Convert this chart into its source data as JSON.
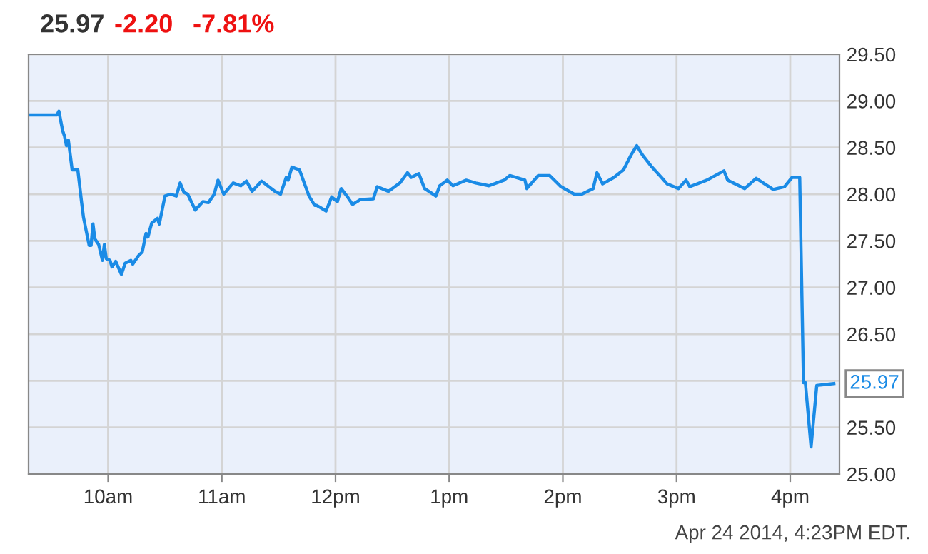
{
  "chart_data": {
    "type": "line",
    "title": "25.97",
    "annotations": [
      "-2.20",
      "-7.81%",
      {
        "text": "25.97",
        "x": "2014-04-24T16:23",
        "y": 25.97
      },
      "Apr 24 2014, 4:23PM EDT."
    ],
    "x": [
      "2014-04-24T09:19",
      "2014-04-24T09:33",
      "2014-04-24T09:34",
      "2014-04-24T09:36",
      "2014-04-24T09:37",
      "2014-04-24T09:38",
      "2014-04-24T09:39",
      "2014-04-24T09:40",
      "2014-04-24T09:41",
      "2014-04-24T09:44",
      "2014-04-24T09:46",
      "2014-04-24T09:47",
      "2014-04-24T09:50",
      "2014-04-24T09:51",
      "2014-04-24T09:52",
      "2014-04-24T09:53",
      "2014-04-24T09:55",
      "2014-04-24T09:57",
      "2014-04-24T09:58",
      "2014-04-24T09:59",
      "2014-04-24T10:01",
      "2014-04-24T10:02",
      "2014-04-24T10:04",
      "2014-04-24T10:07",
      "2014-04-24T10:09",
      "2014-04-24T10:12",
      "2014-04-24T10:13",
      "2014-04-24T10:16",
      "2014-04-24T10:18",
      "2014-04-24T10:20",
      "2014-04-24T10:21",
      "2014-04-24T10:23",
      "2014-04-24T10:26",
      "2014-04-24T10:27",
      "2014-04-24T10:30",
      "2014-04-24T10:33",
      "2014-04-24T10:36",
      "2014-04-24T10:38",
      "2014-04-24T10:40",
      "2014-04-24T10:42",
      "2014-04-24T10:46",
      "2014-04-24T10:50",
      "2014-04-24T10:53",
      "2014-04-24T10:56",
      "2014-04-24T10:58",
      "2014-04-24T11:01",
      "2014-04-24T11:06",
      "2014-04-24T11:10",
      "2014-04-24T11:13",
      "2014-04-24T11:16",
      "2014-04-24T11:21",
      "2014-04-24T11:28",
      "2014-04-24T11:31",
      "2014-04-24T11:34",
      "2014-04-24T11:35",
      "2014-04-24T11:37",
      "2014-04-24T11:41",
      "2014-04-24T11:46",
      "2014-04-24T11:49",
      "2014-04-24T11:50",
      "2014-04-24T11:55",
      "2014-04-24T11:58",
      "2014-04-24T12:01",
      "2014-04-24T12:03",
      "2014-04-24T12:06",
      "2014-04-24T12:09",
      "2014-04-24T12:13",
      "2014-04-24T12:20",
      "2014-04-24T12:22",
      "2014-04-24T12:28",
      "2014-04-24T12:34",
      "2014-04-24T12:38",
      "2014-04-24T12:40",
      "2014-04-24T12:44",
      "2014-04-24T12:47",
      "2014-04-24T12:53",
      "2014-04-24T12:55",
      "2014-04-24T12:59",
      "2014-04-24T13:02",
      "2014-04-24T13:09",
      "2014-04-24T13:14",
      "2014-04-24T13:21",
      "2014-04-24T13:29",
      "2014-04-24T13:32",
      "2014-04-24T13:40",
      "2014-04-24T13:41",
      "2014-04-24T13:47",
      "2014-04-24T13:53",
      "2014-04-24T13:59",
      "2014-04-24T14:06",
      "2014-04-24T14:10",
      "2014-04-24T14:16",
      "2014-04-24T14:18",
      "2014-04-24T14:21",
      "2014-04-24T14:27",
      "2014-04-24T14:32",
      "2014-04-24T14:36",
      "2014-04-24T14:39",
      "2014-04-24T14:42",
      "2014-04-24T14:47",
      "2014-04-24T14:52",
      "2014-04-24T14:55",
      "2014-04-24T15:01",
      "2014-04-24T15:05",
      "2014-04-24T15:07",
      "2014-04-24T15:16",
      "2014-04-24T15:25",
      "2014-04-24T15:27",
      "2014-04-24T15:36",
      "2014-04-24T15:42",
      "2014-04-24T15:51",
      "2014-04-24T15:57",
      "2014-04-24T16:01",
      "2014-04-24T16:05",
      "2014-04-24T16:07",
      "2014-04-24T16:08",
      "2014-04-24T16:11",
      "2014-04-24T16:14",
      "2014-04-24T16:23"
    ],
    "series": [
      {
        "color": "#1a8be6",
        "values": [
          28.85,
          28.85,
          28.89,
          28.68,
          28.62,
          28.52,
          28.58,
          28.42,
          28.26,
          28.26,
          27.91,
          27.75,
          27.45,
          27.45,
          27.68,
          27.52,
          27.46,
          27.29,
          27.46,
          27.31,
          27.29,
          27.22,
          27.28,
          27.14,
          27.26,
          27.29,
          27.25,
          27.34,
          27.38,
          27.58,
          27.54,
          27.69,
          27.74,
          27.68,
          27.98,
          28.0,
          27.98,
          28.12,
          28.02,
          28.0,
          27.83,
          27.92,
          27.91,
          28.0,
          28.15,
          28.0,
          28.12,
          28.09,
          28.14,
          28.03,
          28.14,
          28.03,
          28.0,
          28.18,
          28.15,
          28.29,
          28.26,
          27.98,
          27.88,
          27.88,
          27.82,
          27.97,
          27.92,
          28.06,
          27.98,
          27.89,
          27.94,
          27.95,
          28.08,
          28.03,
          28.12,
          28.23,
          28.18,
          28.22,
          28.06,
          27.98,
          28.09,
          28.15,
          28.09,
          28.15,
          28.12,
          28.09,
          28.15,
          28.2,
          28.15,
          28.06,
          28.2,
          28.2,
          28.08,
          28.0,
          28.0,
          28.06,
          28.23,
          28.11,
          28.18,
          28.26,
          28.42,
          28.52,
          28.42,
          28.29,
          28.18,
          28.11,
          28.06,
          28.15,
          28.08,
          28.15,
          28.25,
          28.15,
          28.06,
          28.17,
          28.05,
          28.08,
          28.18,
          28.18,
          25.98,
          25.98,
          25.29,
          25.95,
          25.97
        ]
      }
    ],
    "xlim": [
      "2014-04-24T09:18",
      "2014-04-24T16:26"
    ],
    "xticks": [
      {
        "value": "2014-04-24T10:00",
        "label": "10am"
      },
      {
        "value": "2014-04-24T11:00",
        "label": "11am"
      },
      {
        "value": "2014-04-24T12:00",
        "label": "12pm"
      },
      {
        "value": "2014-04-24T13:00",
        "label": "1pm"
      },
      {
        "value": "2014-04-24T14:00",
        "label": "2pm"
      },
      {
        "value": "2014-04-24T15:00",
        "label": "3pm"
      },
      {
        "value": "2014-04-24T16:00",
        "label": "4pm"
      }
    ],
    "ylim": [
      25.0,
      29.5
    ],
    "yticks": [
      {
        "value": 25.0,
        "label": "25.00"
      },
      {
        "value": 25.5,
        "label": "25.50"
      },
      {
        "value": 26.0,
        "label": null
      },
      {
        "value": 26.5,
        "label": "26.50"
      },
      {
        "value": 27.0,
        "label": "27.00"
      },
      {
        "value": 27.5,
        "label": "27.50"
      },
      {
        "value": 28.0,
        "label": "28.00"
      },
      {
        "value": 28.5,
        "label": "28.50"
      },
      {
        "value": 29.0,
        "label": "29.00"
      },
      {
        "value": 29.5,
        "label": "29.50"
      }
    ],
    "grid": true,
    "line_style": "solid"
  }
}
